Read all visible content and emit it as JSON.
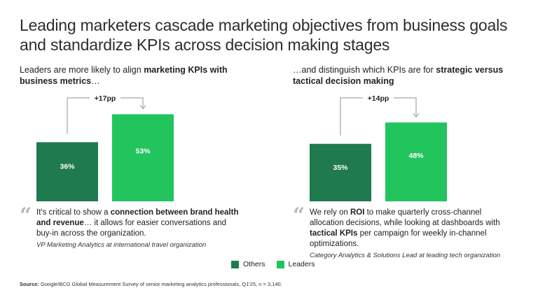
{
  "title": "Leading marketers cascade marketing objectives from business goals and standardize KPIs across decision making stages",
  "colors": {
    "others": "#1f7a4f",
    "leaders": "#22c45e",
    "bracket": "#a6a6a6",
    "quote_mark": "#b8b8b8"
  },
  "panels": [
    {
      "subtitle_pre": "Leaders are more likely to align ",
      "subtitle_bold": "marketing KPIs with business metrics",
      "subtitle_post": "…",
      "quote_pre": "It's critical to show a ",
      "quote_bold": "connection between brand health and revenue",
      "quote_post": "… it allows for easier conversations and buy-in across the organization.",
      "attribution": "VP Marketing Analytics at international travel organization"
    },
    {
      "subtitle_pre": "…and distinguish which KPIs are for ",
      "subtitle_bold": "strategic versus tactical decision making",
      "subtitle_post": "",
      "quote_pre": "We rely on ",
      "quote_bold": "ROI",
      "quote_mid": " to make quarterly cross-channel allocation decisions, while looking at dashboards with ",
      "quote_bold2": "tactical KPIs",
      "quote_post": " per campaign for weekly in-channel optimizations.",
      "attribution": "Category Analytics & Solutions Lead at leading tech organization"
    }
  ],
  "chart_data": [
    {
      "type": "bar",
      "categories": [
        "Others",
        "Leaders"
      ],
      "values": [
        36,
        53
      ],
      "value_labels": [
        "36%",
        "53%"
      ],
      "difference_label": "+17pp"
    },
    {
      "type": "bar",
      "categories": [
        "Others",
        "Leaders"
      ],
      "values": [
        35,
        48
      ],
      "value_labels": [
        "35%",
        "48%"
      ],
      "difference_label": "+14pp"
    }
  ],
  "legend": {
    "others": "Others",
    "leaders": "Leaders"
  },
  "source": {
    "label": "Source:",
    "text": " Google/BCG Global Measurement Survey of senior marketing analytics professionals, Q1'25, n = 3,140."
  }
}
